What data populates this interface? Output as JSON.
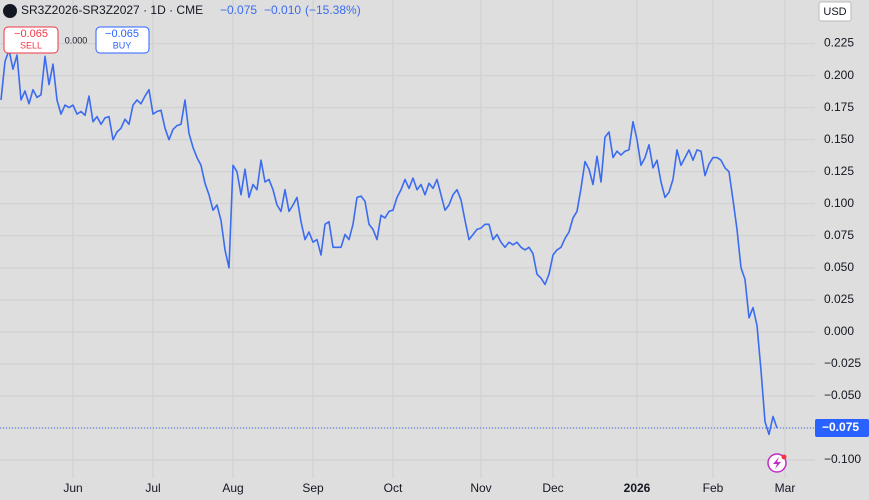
{
  "header": {
    "symbol": "SR3Z2026-SR3Z2027 · 1D · CME",
    "last": "−0.075",
    "change": "−0.010",
    "change_pct": "(−15.38%)"
  },
  "trade": {
    "sell_price": "−0.065",
    "sell": "SELL",
    "spread": "0.000",
    "buy_price": "−0.065",
    "buy": "BUY"
  },
  "chart_data": {
    "type": "line",
    "currency": "USD",
    "last_label": "−0.075",
    "categories": [
      null,
      null,
      null,
      null,
      null,
      null,
      null,
      null,
      null,
      null,
      null,
      null,
      null,
      null,
      null,
      null,
      null,
      null,
      "Jun",
      null,
      null,
      null,
      null,
      null,
      null,
      null,
      null,
      null,
      null,
      null,
      null,
      null,
      null,
      null,
      null,
      null,
      null,
      null,
      "Jul",
      null,
      null,
      null,
      null,
      null,
      null,
      null,
      null,
      null,
      null,
      null,
      null,
      null,
      null,
      null,
      null,
      null,
      null,
      null,
      "Aug",
      null,
      null,
      null,
      null,
      null,
      null,
      null,
      null,
      null,
      null,
      null,
      null,
      null,
      null,
      null,
      null,
      null,
      null,
      null,
      "Sep",
      null,
      null,
      null,
      null,
      null,
      null,
      null,
      null,
      null,
      null,
      null,
      null,
      null,
      null,
      null,
      null,
      null,
      null,
      null,
      "Oct",
      null,
      null,
      null,
      null,
      null,
      null,
      null,
      null,
      null,
      null,
      null,
      null,
      null,
      null,
      null,
      null,
      null,
      null,
      null,
      null,
      null,
      "Nov",
      null,
      null,
      null,
      null,
      null,
      null,
      null,
      null,
      null,
      null,
      null,
      null,
      null,
      null,
      null,
      null,
      null,
      "Dec",
      null,
      null,
      null,
      null,
      null,
      null,
      null,
      null,
      null,
      null,
      null,
      null,
      null,
      null,
      null,
      null,
      null,
      null,
      null,
      null,
      "2026",
      null,
      null,
      null,
      null,
      null,
      null,
      null,
      null,
      null,
      null,
      null,
      null,
      null,
      null,
      null,
      null,
      null,
      null,
      "Feb",
      null,
      null,
      null,
      null,
      null,
      null,
      null,
      null,
      null,
      null,
      null,
      null,
      null,
      null,
      null,
      null,
      null,
      "Mar"
    ],
    "series": [
      {
        "name": "SR3Z2026-SR3Z2027",
        "color": "#3b6cf0",
        "values": [
          0.181,
          0.211,
          0.22,
          0.205,
          0.216,
          0.181,
          0.188,
          0.178,
          0.189,
          0.183,
          0.185,
          0.215,
          0.193,
          0.209,
          0.181,
          0.17,
          0.177,
          0.175,
          0.177,
          0.17,
          0.172,
          0.169,
          0.184,
          0.164,
          0.168,
          0.162,
          0.167,
          0.168,
          0.15,
          0.156,
          0.159,
          0.166,
          0.162,
          0.177,
          0.181,
          0.178,
          0.184,
          0.189,
          0.17,
          0.172,
          0.173,
          0.159,
          0.15,
          0.158,
          0.161,
          0.162,
          0.181,
          0.155,
          0.144,
          0.136,
          0.13,
          0.116,
          0.107,
          0.095,
          0.099,
          0.087,
          0.064,
          0.05,
          0.13,
          0.125,
          0.107,
          0.127,
          0.105,
          0.115,
          0.111,
          0.134,
          0.117,
          0.119,
          0.111,
          0.099,
          0.094,
          0.111,
          0.094,
          0.099,
          0.105,
          0.086,
          0.072,
          0.078,
          0.07,
          0.072,
          0.06,
          0.084,
          0.086,
          0.066,
          0.066,
          0.066,
          0.076,
          0.072,
          0.084,
          0.105,
          0.106,
          0.102,
          0.084,
          0.08,
          0.072,
          0.091,
          0.089,
          0.094,
          0.095,
          0.105,
          0.111,
          0.119,
          0.112,
          0.12,
          0.111,
          0.115,
          0.107,
          0.116,
          0.112,
          0.119,
          0.107,
          0.095,
          0.099,
          0.107,
          0.111,
          0.103,
          0.087,
          0.072,
          0.076,
          0.08,
          0.081,
          0.084,
          0.084,
          0.072,
          0.076,
          0.07,
          0.066,
          0.07,
          0.068,
          0.07,
          0.066,
          0.064,
          0.066,
          0.061,
          0.045,
          0.042,
          0.037,
          0.045,
          0.06,
          0.064,
          0.066,
          0.073,
          0.078,
          0.089,
          0.094,
          0.112,
          0.133,
          0.127,
          0.115,
          0.137,
          0.117,
          0.152,
          0.156,
          0.136,
          0.141,
          0.138,
          0.141,
          0.142,
          0.164,
          0.15,
          0.13,
          0.136,
          0.146,
          0.128,
          0.134,
          0.117,
          0.105,
          0.109,
          0.119,
          0.142,
          0.13,
          0.136,
          0.142,
          0.134,
          0.142,
          0.141,
          0.122,
          0.131,
          0.136,
          0.136,
          0.134,
          0.128,
          0.125,
          0.103,
          0.08,
          0.05,
          0.041,
          0.011,
          0.019,
          0.005,
          -0.03,
          -0.07,
          -0.08,
          -0.066,
          -0.075,
          null,
          null
        ]
      }
    ],
    "ylim": [
      -0.114,
      0.259
    ],
    "yticks": [
      {
        "value": 0.225,
        "label": "0.225"
      },
      {
        "value": 0.2,
        "label": "0.200"
      },
      {
        "value": 0.175,
        "label": "0.175"
      },
      {
        "value": 0.15,
        "label": "0.150"
      },
      {
        "value": 0.125,
        "label": "0.125"
      },
      {
        "value": 0.1,
        "label": "0.100"
      },
      {
        "value": 0.075,
        "label": "0.075"
      },
      {
        "value": 0.05,
        "label": "0.050"
      },
      {
        "value": 0.025,
        "label": "0.025"
      },
      {
        "value": 0,
        "label": "0.000"
      },
      {
        "value": -0.025,
        "label": "−0.025"
      },
      {
        "value": -0.05,
        "label": "−0.050"
      },
      {
        "value": -0.075,
        "label": "−0.075"
      },
      {
        "value": -0.1,
        "label": "−0.100"
      }
    ],
    "grid": true
  }
}
